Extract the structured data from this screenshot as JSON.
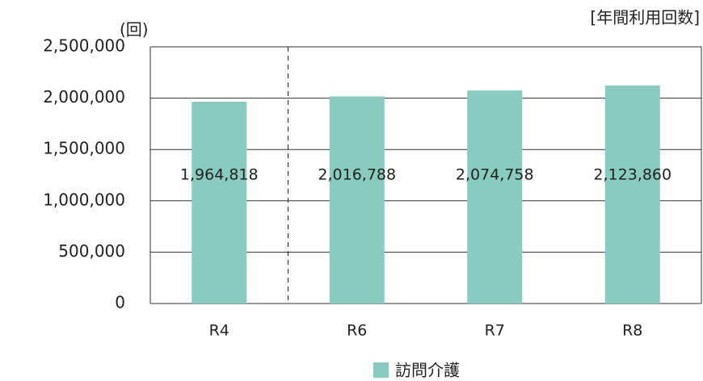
{
  "chart_data": {
    "type": "bar",
    "title": "[年間利用回数]",
    "y_unit": "(回)",
    "categories": [
      "R4",
      "R6",
      "R7",
      "R8"
    ],
    "series": [
      {
        "name": "訪問介護",
        "color": "#88cbbf",
        "values": [
          1964818,
          2016788,
          2074758,
          2123860
        ],
        "value_labels": [
          "1,964,818",
          "2,016,788",
          "2,074,758",
          "2,123,860"
        ]
      }
    ],
    "ylim": [
      0,
      2500000
    ],
    "yticks": [
      0,
      {
        "value": 500000,
        "label": "500,000"
      },
      {
        "value": 1000000,
        "label": "1,000,000"
      },
      {
        "value": 1500000,
        "label": "1,500,000"
      },
      {
        "value": 2000000,
        "label": "2,000,000"
      },
      {
        "value": 2500000,
        "label": "2,500,000"
      }
    ],
    "grid": true,
    "legend": "bottom"
  }
}
